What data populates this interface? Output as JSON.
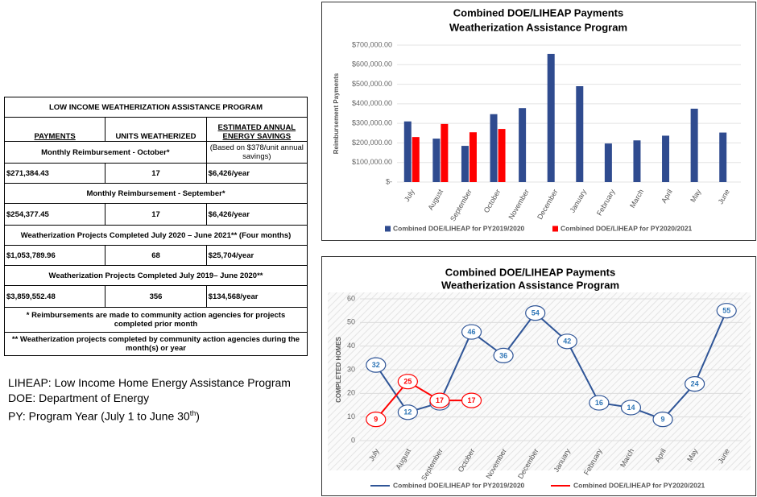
{
  "table": {
    "title": "LOW INCOME WEATHERIZATION ASSISTANCE PROGRAM",
    "headers": [
      "PAYMENTS",
      "UNITS WEATHERIZED",
      "ESTIMATED ANNUAL ENERGY SAVINGS"
    ],
    "rows": [
      [
        "Monthly Reimbursement - October*",
        "(Based on $378/unit annual savings)"
      ],
      [
        "$271,384.43",
        "17",
        "$6,426/year"
      ],
      [
        "Monthly Reimbursement - September*"
      ],
      [
        "$254,377.45",
        "17",
        "$6,426/year"
      ],
      [
        "Weatherization Projects Completed July 2020 – June 2021** (Four months)"
      ],
      [
        "$1,053,789.96",
        "68",
        "$25,704/year"
      ],
      [
        "Weatherization Projects Completed July 2019– June 2020**"
      ],
      [
        "$3,859,552.48",
        "356",
        "$134,568/year"
      ],
      [
        "* Reimbursements are made to community action agencies for projects completed prior month"
      ],
      [
        "** Weatherization projects completed by community action agencies during the month(s) or year"
      ]
    ]
  },
  "notes": [
    "LIHEAP: Low Income Home Energy Assistance Program",
    "DOE: Department of Energy"
  ],
  "py_note": {
    "text": "PY: Program Year (July 1 to June 30",
    "sup": "th",
    "end": ")"
  },
  "chart_data": [
    {
      "type": "bar",
      "title": "Combined DOE/LIHEAP Payments",
      "subtitle": "Weatherization Assistance Program",
      "y_label": "Reimbursement Payments",
      "categories": [
        "July",
        "August",
        "September",
        "October",
        "November",
        "December",
        "January",
        "February",
        "March",
        "April",
        "May",
        "June"
      ],
      "series": [
        {
          "name": "Combined DOE/LIHEAP for PY2019/2020",
          "color": "#2f4b8f",
          "values": [
            310000,
            222000,
            185000,
            347000,
            378000,
            655000,
            490000,
            197000,
            213000,
            237000,
            375000,
            253000
          ]
        },
        {
          "name": "Combined DOE/LIHEAP for PY2020/2021",
          "color": "#ff0000",
          "values": [
            230000,
            297000,
            254377.45,
            271384.43,
            null,
            null,
            null,
            null,
            null,
            null,
            null,
            null
          ]
        }
      ],
      "ylim": [
        0,
        700000
      ],
      "yticks": [
        {
          "value": 0,
          "label": "$-"
        },
        {
          "value": 100000,
          "label": "$100,000.00"
        },
        {
          "value": 200000,
          "label": "$200,000.00"
        },
        {
          "value": 300000,
          "label": "$300,000.00"
        },
        {
          "value": 400000,
          "label": "$400,000.00"
        },
        {
          "value": 500000,
          "label": "$500,000.00"
        },
        {
          "value": 600000,
          "label": "$600,000.00"
        },
        {
          "value": 700000,
          "label": "$700,000.00"
        }
      ],
      "grid": true,
      "legend": "bottom"
    },
    {
      "type": "line",
      "title": "Combined DOE/LIHEAP Payments",
      "subtitle": "Weatherization Assistance Program",
      "y_label": "COMPLETED HOMES",
      "categories": [
        "July",
        "August",
        "September",
        "October",
        "November",
        "December",
        "January",
        "February",
        "March",
        "April",
        "May",
        "June"
      ],
      "series": [
        {
          "name": "Combined DOE/LIHEAP for PY2019/2020",
          "color": "#2f5597",
          "values": [
            32,
            12,
            16,
            46,
            36,
            54,
            42,
            16,
            14,
            9,
            24,
            55
          ]
        },
        {
          "name": "Combined DOE/LIHEAP for PY2020/2021",
          "color": "#ff0000",
          "values": [
            9,
            25,
            17,
            17,
            null,
            null,
            null,
            null,
            null,
            null,
            null,
            null
          ]
        }
      ],
      "ylim": [
        0,
        60
      ],
      "yticks": [
        0,
        10,
        20,
        30,
        40,
        50,
        60
      ],
      "grid": true,
      "legend": "bottom"
    }
  ]
}
